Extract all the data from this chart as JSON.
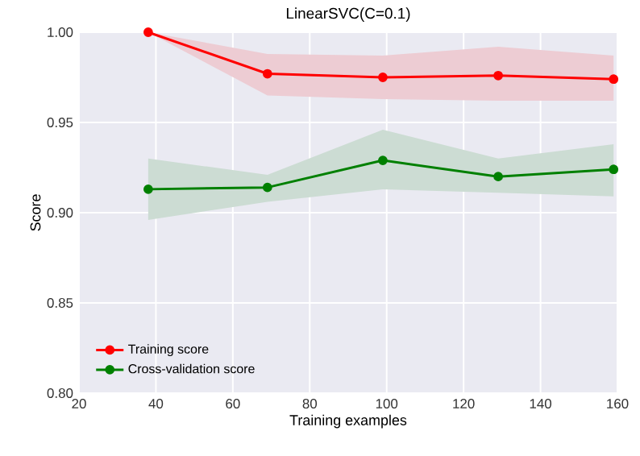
{
  "chart_data": {
    "type": "line",
    "title": "LinearSVC(C=0.1)",
    "xlabel": "Training examples",
    "ylabel": "Score",
    "xlim": [
      20,
      160
    ],
    "xticks": [
      20,
      40,
      60,
      80,
      100,
      120,
      140,
      160
    ],
    "ylim": [
      0.8,
      1.0
    ],
    "yticks": [
      {
        "value": 0.8,
        "label": "0.80"
      },
      {
        "value": 0.85,
        "label": "0.85"
      },
      {
        "value": 0.9,
        "label": "0.90"
      },
      {
        "value": 0.95,
        "label": "0.95"
      },
      {
        "value": 1.0,
        "label": "1.00"
      }
    ],
    "grid": true,
    "legend": "bottom left",
    "marker": "circle",
    "series": [
      {
        "name": "Training score",
        "color": "#ff0000",
        "x": [
          38,
          69,
          99,
          129,
          159
        ],
        "values": [
          1.0,
          0.977,
          0.975,
          0.976,
          0.974
        ],
        "lower": [
          1.0,
          0.965,
          0.963,
          0.962,
          0.962
        ],
        "upper": [
          1.0,
          0.988,
          0.987,
          0.992,
          0.987
        ]
      },
      {
        "name": "Cross-validation score",
        "color": "#008000",
        "x": [
          38,
          69,
          99,
          129,
          159
        ],
        "values": [
          0.913,
          0.914,
          0.929,
          0.92,
          0.924
        ],
        "lower": [
          0.896,
          0.906,
          0.913,
          0.911,
          0.909
        ],
        "upper": [
          0.93,
          0.921,
          0.946,
          0.93,
          0.938
        ]
      }
    ]
  }
}
